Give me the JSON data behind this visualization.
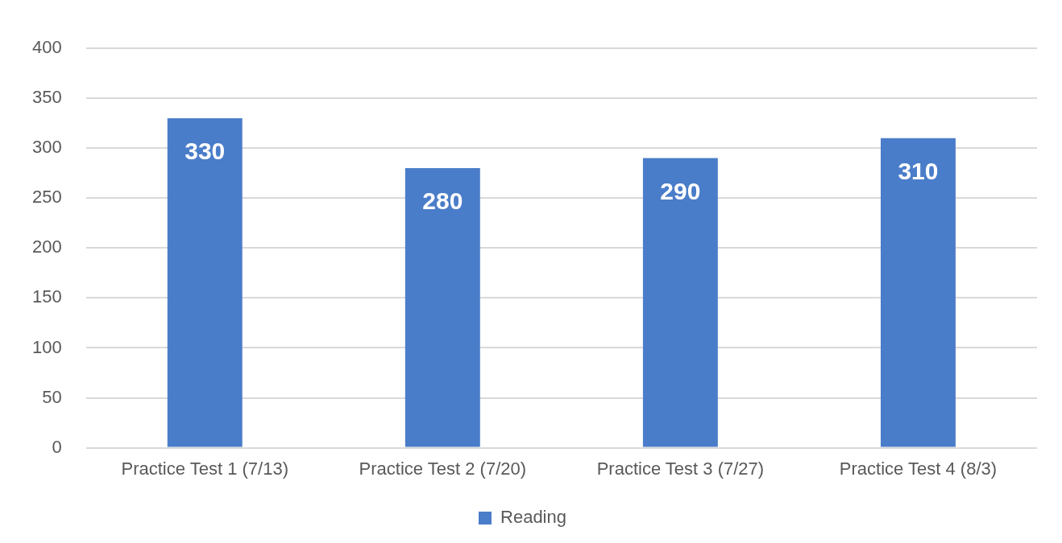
{
  "chart_data": {
    "type": "bar",
    "categories": [
      "Practice Test 1 (7/13)",
      "Practice Test 2 (7/20)",
      "Practice Test 3 (7/27)",
      "Practice Test 4 (8/3)"
    ],
    "series": [
      {
        "name": "Reading",
        "color": "#4a7dc9",
        "values": [
          330,
          280,
          290,
          310
        ]
      }
    ],
    "ylim": [
      0,
      400
    ],
    "yticks": [
      0,
      50,
      100,
      150,
      200,
      250,
      300,
      350,
      400
    ],
    "grid": "y",
    "legend": "bottom",
    "data_labels": true
  }
}
